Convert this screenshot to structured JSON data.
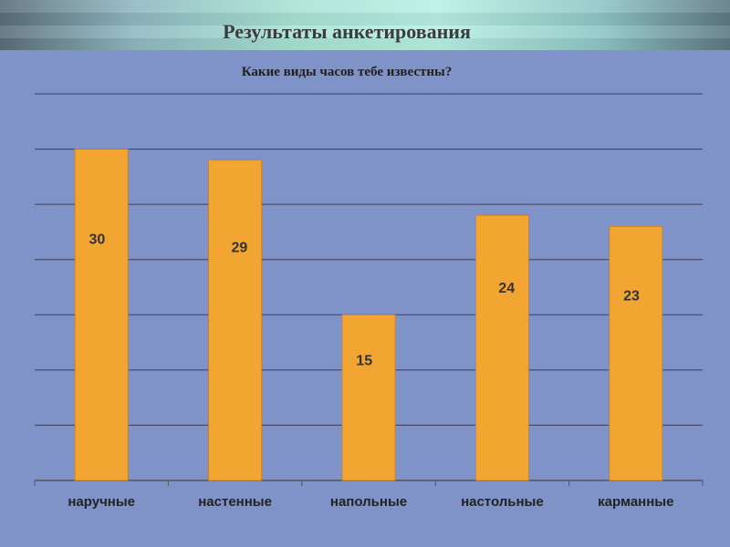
{
  "slide": {
    "title": "Результаты анкетирования"
  },
  "chart_data": {
    "type": "bar",
    "title": "Какие виды часов тебе известны?",
    "categories": [
      "наручные",
      "настенные",
      "напольные",
      "настольные",
      "карманные"
    ],
    "values": [
      30,
      29,
      15,
      24,
      23
    ],
    "ylim": [
      0,
      35
    ],
    "grid": true,
    "legend": "none",
    "colors": {
      "bar": "#f2a531",
      "plot_background": "#7f93c9",
      "grid": "#3d3d5a"
    }
  }
}
